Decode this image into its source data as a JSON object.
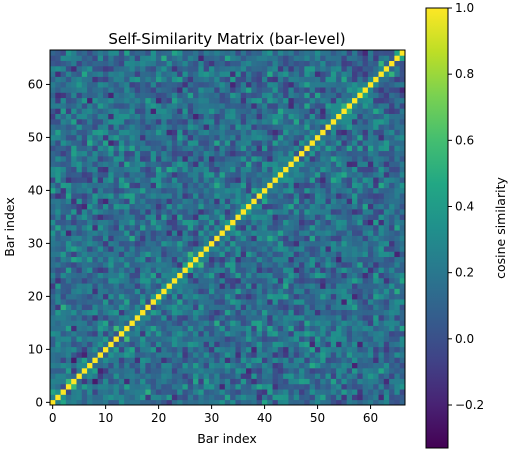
{
  "chart_data": {
    "type": "heatmap",
    "title": "Self-Similarity Matrix (bar-level)",
    "xlabel": "Bar index",
    "ylabel": "Bar index",
    "n_bars": 67,
    "xlim": [
      -0.5,
      66.5
    ],
    "ylim": [
      -0.5,
      66.5
    ],
    "x_ticks": [
      0,
      10,
      20,
      30,
      40,
      50,
      60
    ],
    "y_ticks": [
      0,
      10,
      20,
      30,
      40,
      50,
      60
    ],
    "origin": "lower",
    "diagonal_value": 1.0,
    "off_diagonal_typical_range": [
      -0.25,
      0.55
    ],
    "colormap": "viridis",
    "grid": false,
    "colorbar": {
      "label": "cosine similarity",
      "range": [
        -0.33,
        1.0
      ],
      "ticks": [
        -0.2,
        0.0,
        0.2,
        0.4,
        0.6,
        0.8,
        1.0
      ],
      "tick_labels": [
        "−0.2",
        "0.0",
        "0.2",
        "0.4",
        "0.6",
        "0.8",
        "1.0"
      ]
    }
  }
}
